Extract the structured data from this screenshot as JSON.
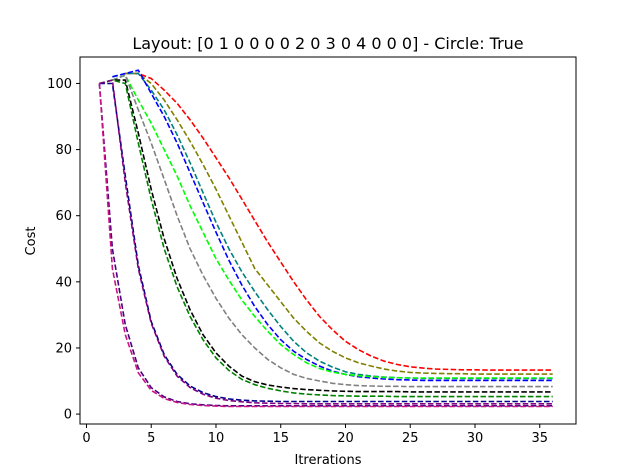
{
  "chart_data": {
    "type": "line",
    "title": "Layout: [0 1 0 0 0 0 2 0 3 0 4 0 0 0] - Circle: True",
    "xlabel": "Itrerations",
    "ylabel": "Cost",
    "xlim": [
      -0.5,
      37.8
    ],
    "ylim": [
      -3,
      108
    ],
    "xticks": [
      0,
      5,
      10,
      15,
      20,
      25,
      30,
      35
    ],
    "yticks": [
      0,
      20,
      40,
      60,
      80,
      100
    ],
    "grid": false,
    "legend": "none",
    "line_style": "dashed",
    "series": [
      {
        "color": "#ff0000",
        "x": [
          3,
          4,
          5,
          6,
          7,
          8,
          9,
          10,
          11,
          12,
          13,
          14,
          15,
          16,
          17,
          18,
          19,
          20,
          21,
          22,
          23,
          24,
          25,
          26,
          27,
          28,
          29,
          30,
          31,
          32,
          33,
          34,
          35,
          36
        ],
        "y": [
          103,
          103,
          101.5,
          98,
          94,
          89,
          83.5,
          77.5,
          71.5,
          65,
          58.5,
          52,
          46,
          40,
          34.5,
          29.5,
          25.5,
          22,
          19.5,
          17.5,
          16,
          15,
          14.3,
          13.9,
          13.6,
          13.5,
          13.4,
          13.4,
          13.3,
          13.3,
          13.3,
          13.3,
          13.3,
          13.3
        ]
      },
      {
        "color": "#808000",
        "x": [
          3,
          4,
          5,
          6,
          7,
          8,
          9,
          10,
          11,
          12,
          13,
          14,
          15,
          16,
          17,
          18,
          19,
          20,
          21,
          22,
          23,
          24,
          25,
          26,
          27,
          28,
          29,
          30,
          31,
          32,
          33,
          34,
          35,
          36
        ],
        "y": [
          103,
          103,
          100,
          95,
          89,
          82.5,
          75.5,
          68,
          60,
          52,
          44,
          39,
          34,
          29,
          25,
          21.5,
          19,
          17,
          15.5,
          14.5,
          13.6,
          13,
          12.6,
          12.4,
          12.3,
          12.2,
          12.2,
          12.1,
          12.1,
          12.1,
          12.1,
          12.1,
          12.1,
          12.1
        ]
      },
      {
        "color": "#008080",
        "x": [
          2,
          3,
          4,
          5,
          6,
          7,
          8,
          9,
          10,
          11,
          12,
          13,
          14,
          15,
          16,
          17,
          18,
          19,
          20,
          21,
          22,
          23,
          24,
          25,
          26,
          27,
          28,
          29,
          30,
          31,
          32,
          33,
          34,
          35,
          36
        ],
        "y": [
          102,
          103,
          103,
          98,
          92,
          84.5,
          76,
          67,
          58,
          50,
          43,
          37,
          31.5,
          26.5,
          22,
          18.5,
          16,
          14.2,
          12.8,
          12,
          11.5,
          11.2,
          11,
          10.9,
          10.8,
          10.8,
          10.8,
          10.8,
          10.8,
          10.8,
          10.8,
          10.8,
          10.8,
          10.8,
          10.8
        ]
      },
      {
        "color": "#0000ff",
        "x": [
          2,
          3,
          4,
          5,
          6,
          7,
          8,
          9,
          10,
          11,
          12,
          13,
          14,
          15,
          16,
          17,
          18,
          19,
          20,
          21,
          22,
          23,
          24,
          25,
          26,
          27,
          28,
          29,
          30,
          31,
          32,
          33,
          34,
          35,
          36
        ],
        "y": [
          102,
          103,
          104,
          97,
          90,
          82,
          73,
          64,
          55,
          46.5,
          39,
          32.5,
          27,
          22.5,
          19,
          16.5,
          14.5,
          13,
          12,
          11.3,
          10.9,
          10.6,
          10.4,
          10.3,
          10.2,
          10.2,
          10.2,
          10.2,
          10.2,
          10.2,
          10.2,
          10.2,
          10.2,
          10.2,
          10.2
        ]
      },
      {
        "color": "#00ff00",
        "x": [
          2,
          3,
          4,
          5,
          6,
          7,
          8,
          9,
          10,
          11,
          12,
          13,
          14,
          15,
          16,
          17,
          18,
          19,
          20,
          21,
          22,
          23,
          24,
          25,
          26,
          27,
          28,
          29,
          30,
          31,
          32,
          33,
          34,
          35,
          36
        ],
        "y": [
          101,
          102.5,
          95,
          88,
          80,
          72,
          63,
          55,
          47,
          40.5,
          34.5,
          29.5,
          25,
          21,
          18,
          15.5,
          13.8,
          12.7,
          12,
          11.6,
          11.3,
          11.1,
          11,
          10.9,
          10.9,
          10.9,
          10.9,
          10.9,
          10.9,
          10.9,
          10.9,
          10.9,
          10.9,
          10.9,
          10.9
        ]
      },
      {
        "color": "#808080",
        "x": [
          2,
          3,
          4,
          5,
          6,
          7,
          8,
          9,
          10,
          11,
          12,
          13,
          14,
          15,
          16,
          17,
          18,
          19,
          20,
          21,
          22,
          23,
          24,
          25,
          26,
          27,
          28,
          29,
          30,
          31,
          32,
          33,
          34,
          35,
          36
        ],
        "y": [
          101,
          102.5,
          92,
          82,
          71,
          60,
          50,
          42,
          35,
          29,
          24,
          20,
          16.5,
          14,
          12,
          10.8,
          10,
          9.3,
          8.9,
          8.6,
          8.5,
          8.4,
          8.4,
          8.3,
          8.3,
          8.3,
          8.3,
          8.3,
          8.3,
          8.3,
          8.3,
          8.3,
          8.3,
          8.3,
          8.3
        ]
      },
      {
        "color": "#000000",
        "x": [
          1,
          2,
          3,
          4,
          5,
          6,
          7,
          8,
          9,
          10,
          11,
          12,
          13,
          14,
          15,
          16,
          17,
          18,
          19,
          20,
          21,
          22,
          23,
          24,
          25,
          26,
          27,
          28,
          29,
          30,
          31,
          32,
          33,
          34,
          35,
          36
        ],
        "y": [
          100,
          101,
          101,
          85,
          68,
          53,
          41,
          31.5,
          24,
          18.5,
          14.5,
          11.5,
          9.8,
          8.8,
          8.2,
          7.7,
          7.4,
          7.2,
          7,
          6.9,
          6.8,
          6.8,
          6.8,
          6.8,
          6.7,
          6.7,
          6.7,
          6.7,
          6.7,
          6.7,
          6.7,
          6.7,
          6.7,
          6.7,
          6.7,
          6.7
        ]
      },
      {
        "color": "#008000",
        "x": [
          1,
          2,
          3,
          4,
          5,
          6,
          7,
          8,
          9,
          10,
          11,
          12,
          13,
          14,
          15,
          16,
          17,
          18,
          19,
          20,
          21,
          22,
          23,
          24,
          25,
          26,
          27,
          28,
          29,
          30,
          31,
          32,
          33,
          34,
          35,
          36
        ],
        "y": [
          100,
          101,
          100,
          82,
          65,
          50,
          38.5,
          29.5,
          22.5,
          17,
          13.2,
          10.5,
          8.9,
          7.8,
          7,
          6.4,
          6,
          5.8,
          5.6,
          5.5,
          5.4,
          5.4,
          5.4,
          5.3,
          5.3,
          5.3,
          5.3,
          5.3,
          5.3,
          5.3,
          5.3,
          5.3,
          5.3,
          5.3,
          5.3,
          5.3
        ]
      },
      {
        "color": "#00008b",
        "x": [
          1,
          2,
          3,
          4,
          5,
          6,
          7,
          8,
          9,
          10,
          11,
          12,
          13,
          14,
          15,
          16,
          17,
          18,
          19,
          20,
          21,
          22,
          23,
          24,
          25,
          26,
          27,
          28,
          29,
          30,
          31,
          32,
          33,
          34,
          35,
          36
        ],
        "y": [
          100,
          100,
          72,
          45,
          28,
          18,
          12,
          8.5,
          6.5,
          5.3,
          4.6,
          4.2,
          4,
          3.9,
          3.8,
          3.8,
          3.8,
          3.8,
          3.8,
          3.8,
          3.8,
          3.8,
          3.8,
          3.8,
          3.8,
          3.8,
          3.8,
          3.8,
          3.8,
          3.8,
          3.8,
          3.8,
          3.8,
          3.8,
          3.8,
          3.8
        ]
      },
      {
        "color": "#800080",
        "x": [
          1,
          2,
          3,
          4,
          5,
          6,
          7,
          8,
          9,
          10,
          11,
          12,
          13,
          14,
          15,
          16,
          17,
          18,
          19,
          20,
          21,
          22,
          23,
          24,
          25,
          26,
          27,
          28,
          29,
          30,
          31,
          32,
          33,
          34,
          35,
          36
        ],
        "y": [
          100,
          101,
          70,
          44,
          27.5,
          17.5,
          11.5,
          8,
          6,
          4.8,
          4.1,
          3.7,
          3.4,
          3.3,
          3.2,
          3.2,
          3.1,
          3.1,
          3.1,
          3.1,
          3.1,
          3.1,
          3.1,
          3.1,
          3.1,
          3.1,
          3.1,
          3.1,
          3.1,
          3.1,
          3.1,
          3.1,
          3.1,
          3.1,
          3.1,
          3.1
        ]
      },
      {
        "color": "#4b0082",
        "x": [
          1,
          2,
          3,
          4,
          5,
          6,
          7,
          8,
          9,
          10,
          11,
          12,
          13,
          14,
          15,
          16,
          17,
          18,
          19,
          20,
          21,
          22,
          23,
          24,
          25,
          26,
          27,
          28,
          29,
          30,
          31,
          32,
          33,
          34,
          35,
          36
        ],
        "y": [
          100,
          50,
          27,
          14,
          8,
          5.2,
          3.8,
          3.1,
          2.8,
          2.6,
          2.5,
          2.5,
          2.5,
          2.5,
          2.5,
          2.5,
          2.5,
          2.5,
          2.5,
          2.5,
          2.5,
          2.5,
          2.5,
          2.5,
          2.5,
          2.5,
          2.5,
          2.5,
          2.5,
          2.5,
          2.5,
          2.5,
          2.5,
          2.5,
          2.5,
          2.5
        ]
      },
      {
        "color": "#c71585",
        "x": [
          1,
          2,
          3,
          4,
          5,
          6,
          7,
          8,
          9,
          10,
          11,
          12,
          13,
          14,
          15,
          16,
          17,
          18,
          19,
          20,
          21,
          22,
          23,
          24,
          25,
          26,
          27,
          28,
          29,
          30,
          31,
          32,
          33,
          34,
          35,
          36
        ],
        "y": [
          100,
          44,
          24,
          12.5,
          7.2,
          4.7,
          3.5,
          2.9,
          2.6,
          2.4,
          2.3,
          2.3,
          2.3,
          2.3,
          2.3,
          2.3,
          2.3,
          2.3,
          2.3,
          2.3,
          2.3,
          2.3,
          2.3,
          2.3,
          2.3,
          2.3,
          2.3,
          2.3,
          2.3,
          2.3,
          2.3,
          2.3,
          2.3,
          2.3,
          2.3,
          2.3
        ]
      }
    ]
  }
}
